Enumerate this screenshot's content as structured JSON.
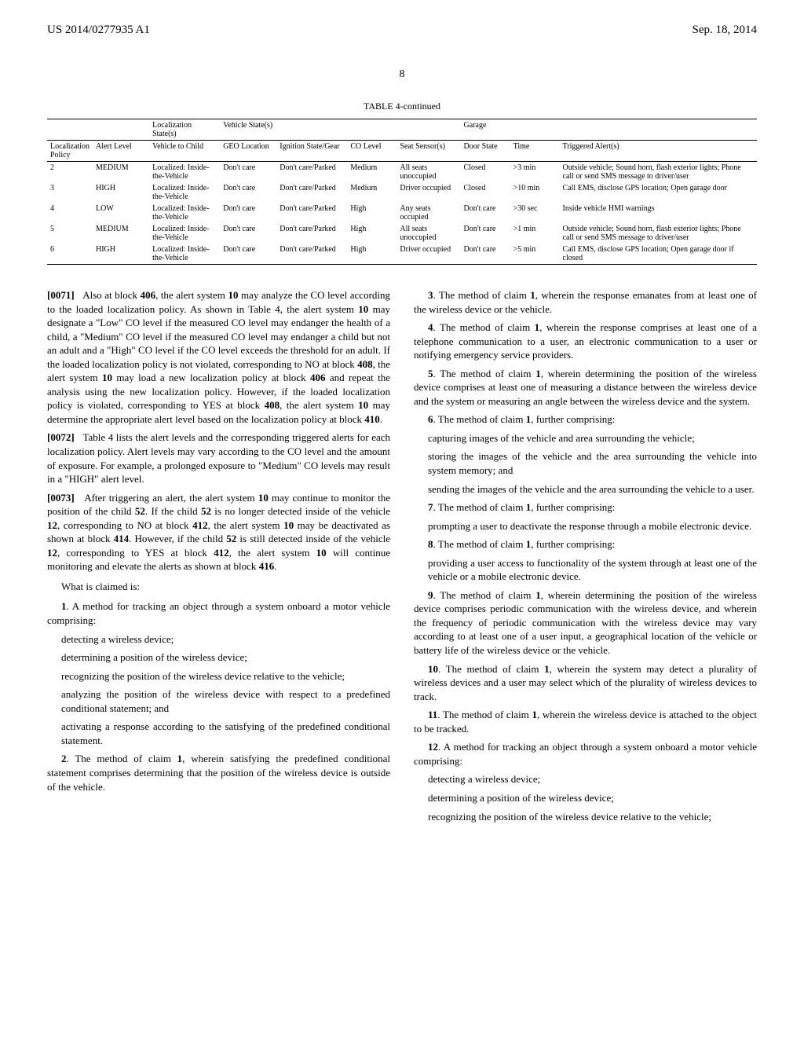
{
  "header": {
    "left": "US 2014/0277935 A1",
    "right": "Sep. 18, 2014"
  },
  "page_number": "8",
  "table": {
    "caption": "TABLE 4-continued",
    "group_headers": {
      "localization_states": "Localization State(s)",
      "vehicle_states": "Vehicle State(s)",
      "garage": "Garage"
    },
    "col_headers": {
      "localization_policy": "Localization Policy",
      "alert_level": "Alert Level",
      "vehicle_to_child": "Vehicle to Child",
      "geo_location": "GEO Location",
      "ignition_state_gear": "Ignition State/Gear",
      "co_level": "CO Level",
      "seat_sensors": "Seat Sensor(s)",
      "door_state": "Door State",
      "time": "Time",
      "triggered_alerts": "Triggered Alert(s)"
    },
    "rows": [
      {
        "localization_policy": "2",
        "alert_level": "MEDIUM",
        "vehicle_to_child": "Localized: Inside-the-Vehicle",
        "geo_location": "Don't care",
        "ignition_state_gear": "Don't care/Parked",
        "co_level": "Medium",
        "seat_sensors": "All seats unoccupied",
        "door_state": "Closed",
        "time": ">3 min",
        "triggered_alerts": "Outside vehicle; Sound horn, flash exterior lights; Phone call or send SMS message to driver/user"
      },
      {
        "localization_policy": "3",
        "alert_level": "HIGH",
        "vehicle_to_child": "Localized: Inside-the-Vehicle",
        "geo_location": "Don't care",
        "ignition_state_gear": "Don't care/Parked",
        "co_level": "Medium",
        "seat_sensors": "Driver occupied",
        "door_state": "Closed",
        "time": ">10 min",
        "triggered_alerts": "Call EMS, disclose GPS location; Open garage door"
      },
      {
        "localization_policy": "4",
        "alert_level": "LOW",
        "vehicle_to_child": "Localized: Inside-the-Vehicle",
        "geo_location": "Don't care",
        "ignition_state_gear": "Don't care/Parked",
        "co_level": "High",
        "seat_sensors": "Any seats occupied",
        "door_state": "Don't care",
        "time": ">30 sec",
        "triggered_alerts": "Inside vehicle HMI warnings"
      },
      {
        "localization_policy": "5",
        "alert_level": "MEDIUM",
        "vehicle_to_child": "Localized: Inside-the-Vehicle",
        "geo_location": "Don't care",
        "ignition_state_gear": "Don't care/Parked",
        "co_level": "High",
        "seat_sensors": "All seats unoccupied",
        "door_state": "Don't care",
        "time": ">1 min",
        "triggered_alerts": "Outside vehicle; Sound horn, flash exterior lights; Phone call or send SMS message to driver/user"
      },
      {
        "localization_policy": "6",
        "alert_level": "HIGH",
        "vehicle_to_child": "Localized: Inside-the-Vehicle",
        "geo_location": "Don't care",
        "ignition_state_gear": "Don't care/Parked",
        "co_level": "High",
        "seat_sensors": "Driver occupied",
        "door_state": "Don't care",
        "time": ">5 min",
        "triggered_alerts": "Call EMS, disclose GPS location; Open garage door if closed"
      }
    ]
  },
  "left_col": {
    "para_0071": {
      "num": "[0071]",
      "text": "Also at block 406, the alert system 10 may analyze the CO level according to the loaded localization policy. As shown in Table 4, the alert system 10 may designate a \"Low\" CO level if the measured CO level may endanger the health of a child, a \"Medium\" CO level if the measured CO level may endanger a child but not an adult and a \"High\" CO level if the CO level exceeds the threshold for an adult. If the loaded localization policy is not violated, corresponding to NO at block 408, the alert system 10 may load a new localization policy at block 406 and repeat the analysis using the new localization policy. However, if the loaded localization policy is violated, corresponding to YES at block 408, the alert system 10 may determine the appropriate alert level based on the localization policy at block 410."
    },
    "para_0072": {
      "num": "[0072]",
      "text": "Table 4 lists the alert levels and the corresponding triggered alerts for each localization policy. Alert levels may vary according to the CO level and the amount of exposure. For example, a prolonged exposure to \"Medium\" CO levels may result in a \"HIGH\" alert level."
    },
    "para_0073": {
      "num": "[0073]",
      "text": "After triggering an alert, the alert system 10 may continue to monitor the position of the child 52. If the child 52 is no longer detected inside of the vehicle 12, corresponding to NO at block 412, the alert system 10 may be deactivated as shown at block 414. However, if the child 52 is still detected inside of the vehicle 12, corresponding to YES at block 412, the alert system 10 will continue monitoring and elevate the alerts as shown at block 416."
    },
    "claims_header": "What is claimed is:",
    "claim1": {
      "lead": "1. A method for tracking an object through a system onboard a motor vehicle comprising:",
      "items": [
        "detecting a wireless device;",
        "determining a position of the wireless device;",
        "recognizing the position of the wireless device relative to the vehicle;",
        "analyzing the position of the wireless device with respect to a predefined conditional statement; and",
        "activating a response according to the satisfying of the predefined conditional statement."
      ]
    },
    "claim2": "2. The method of claim 1, wherein satisfying the predefined conditional statement comprises determining that the position of the wireless device is outside of the vehicle."
  },
  "right_col": {
    "claim3": "3. The method of claim 1, wherein the response emanates from at least one of the wireless device or the vehicle.",
    "claim4": "4. The method of claim 1, wherein the response comprises at least one of a telephone communication to a user, an electronic communication to a user or notifying emergency service providers.",
    "claim5": "5. The method of claim 1, wherein determining the position of the wireless device comprises at least one of measuring a distance between the wireless device and the system or measuring an angle between the wireless device and the system.",
    "claim6": {
      "lead": "6. The method of claim 1, further comprising:",
      "items": [
        "capturing images of the vehicle and area surrounding the vehicle;",
        "storing the images of the vehicle and the area surrounding the vehicle into system memory; and",
        "sending the images of the vehicle and the area surrounding the vehicle to a user."
      ]
    },
    "claim7": {
      "lead": "7. The method of claim 1, further comprising:",
      "items": [
        "prompting a user to deactivate the response through a mobile electronic device."
      ]
    },
    "claim8": {
      "lead": "8. The method of claim 1, further comprising:",
      "items": [
        "providing a user access to functionality of the system through at least one of the vehicle or a mobile electronic device."
      ]
    },
    "claim9": "9. The method of claim 1, wherein determining the position of the wireless device comprises periodic communication with the wireless device, and wherein the frequency of periodic communication with the wireless device may vary according to at least one of a user input, a geographical location of the vehicle or battery life of the wireless device or the vehicle.",
    "claim10": "10. The method of claim 1, wherein the system may detect a plurality of wireless devices and a user may select which of the plurality of wireless devices to track.",
    "claim11": "11. The method of claim 1, wherein the wireless device is attached to the object to be tracked.",
    "claim12": {
      "lead": "12. A method for tracking an object through a system onboard a motor vehicle comprising:",
      "items": [
        "detecting a wireless device;",
        "determining a position of the wireless device;",
        "recognizing the position of the wireless device relative to the vehicle;"
      ]
    }
  }
}
